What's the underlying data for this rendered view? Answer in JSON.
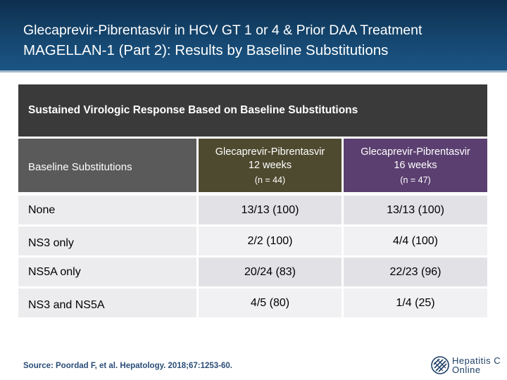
{
  "slide": {
    "title_line1": "Glecaprevir-Pibrentasvir in HCV GT 1 or 4 & Prior DAA Treatment",
    "title_line2": "MAGELLAN-1 (Part 2): Results by Baseline Substitutions"
  },
  "table": {
    "title": "Sustained Virologic Response Based on Baseline Substitutions",
    "header_label": "Baseline Substitutions",
    "columns": [
      {
        "name": "Glecaprevir-Pibrentasvir",
        "duration": "12 weeks",
        "n": "(n = 44)"
      },
      {
        "name": "Glecaprevir-Pibrentasvir",
        "duration": "16 weeks",
        "n": "(n = 47)"
      }
    ],
    "rows": [
      {
        "label": "None",
        "col_a": "13/13 (100)",
        "col_b": "13/13 (100)"
      },
      {
        "label": "NS3 only",
        "col_a": "2/2 (100)",
        "col_b": "4/4 (100)"
      },
      {
        "label": "NS5A only",
        "col_a": "20/24 (83)",
        "col_b": "22/23 (96)"
      },
      {
        "label": "NS3 and NS5A",
        "col_a": "4/5 (80)",
        "col_b": "1/4 (25)"
      }
    ]
  },
  "footer": {
    "source": "Source: Poordad F, et al. Hepatology. 2018;67:1253-60.",
    "logo_line1": "Hepatitis C",
    "logo_line2": "Online",
    "logo_icon": "hepatitis-c-online-logo-icon"
  },
  "colors": {
    "header_bg": "#15466f",
    "table_title_bg": "#3a3a3a",
    "col_a_header": "#4e4a2f",
    "col_b_header": "#5b3f70",
    "source_text": "#2a4d78"
  }
}
